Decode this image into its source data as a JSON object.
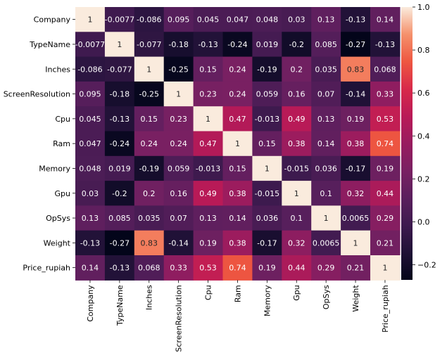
{
  "chart_data": {
    "type": "heatmap",
    "labels": [
      "Company",
      "TypeName",
      "Inches",
      "ScreenResolution",
      "Cpu",
      "Ram",
      "Memory",
      "Gpu",
      "OpSys",
      "Weight",
      "Price_rupiah"
    ],
    "values": [
      [
        1,
        -0.0077,
        -0.086,
        0.095,
        0.045,
        0.047,
        0.048,
        0.03,
        0.13,
        -0.13,
        0.14
      ],
      [
        -0.0077,
        1,
        -0.077,
        -0.18,
        -0.13,
        -0.24,
        0.019,
        -0.2,
        0.085,
        -0.27,
        -0.13
      ],
      [
        -0.086,
        -0.077,
        1,
        -0.25,
        0.15,
        0.24,
        -0.19,
        0.2,
        0.035,
        0.83,
        0.068
      ],
      [
        0.095,
        -0.18,
        -0.25,
        1,
        0.23,
        0.24,
        0.059,
        0.16,
        0.07,
        -0.14,
        0.33
      ],
      [
        0.045,
        -0.13,
        0.15,
        0.23,
        1,
        0.47,
        -0.013,
        0.49,
        0.13,
        0.19,
        0.53
      ],
      [
        0.047,
        -0.24,
        0.24,
        0.24,
        0.47,
        1,
        0.15,
        0.38,
        0.14,
        0.38,
        0.74
      ],
      [
        0.048,
        0.019,
        -0.19,
        0.059,
        -0.013,
        0.15,
        1,
        -0.015,
        0.036,
        -0.17,
        0.19
      ],
      [
        0.03,
        -0.2,
        0.2,
        0.16,
        0.49,
        0.38,
        -0.015,
        1,
        0.1,
        0.32,
        0.44
      ],
      [
        0.13,
        0.085,
        0.035,
        0.07,
        0.13,
        0.14,
        0.036,
        0.1,
        1,
        0.0065,
        0.29
      ],
      [
        -0.13,
        -0.27,
        0.83,
        -0.14,
        0.19,
        0.38,
        -0.17,
        0.32,
        0.0065,
        1,
        0.21
      ],
      [
        0.14,
        -0.13,
        0.068,
        0.33,
        0.53,
        0.74,
        0.19,
        0.44,
        0.29,
        0.21,
        1
      ]
    ],
    "annotations": [
      [
        "1",
        "-0.0077",
        "-0.086",
        "0.095",
        "0.045",
        "0.047",
        "0.048",
        "0.03",
        "0.13",
        "-0.13",
        "0.14"
      ],
      [
        "-0.0077",
        "1",
        "-0.077",
        "-0.18",
        "-0.13",
        "-0.24",
        "0.019",
        "-0.2",
        "0.085",
        "-0.27",
        "-0.13"
      ],
      [
        "-0.086",
        "-0.077",
        "1",
        "-0.25",
        "0.15",
        "0.24",
        "-0.19",
        "0.2",
        "0.035",
        "0.83",
        "0.068"
      ],
      [
        "0.095",
        "-0.18",
        "-0.25",
        "1",
        "0.23",
        "0.24",
        "0.059",
        "0.16",
        "0.07",
        "-0.14",
        "0.33"
      ],
      [
        "0.045",
        "-0.13",
        "0.15",
        "0.23",
        "1",
        "0.47",
        "-0.013",
        "0.49",
        "0.13",
        "0.19",
        "0.53"
      ],
      [
        "0.047",
        "-0.24",
        "0.24",
        "0.24",
        "0.47",
        "1",
        "0.15",
        "0.38",
        "0.14",
        "0.38",
        "0.74"
      ],
      [
        "0.048",
        "0.019",
        "-0.19",
        "0.059",
        "-0.013",
        "0.15",
        "1",
        "-0.015",
        "0.036",
        "-0.17",
        "0.19"
      ],
      [
        "0.03",
        "-0.2",
        "0.2",
        "0.16",
        "0.49",
        "0.38",
        "-0.015",
        "1",
        "0.1",
        "0.32",
        "0.44"
      ],
      [
        "0.13",
        "0.085",
        "0.035",
        "0.07",
        "0.13",
        "0.14",
        "0.036",
        "0.1",
        "1",
        "0.0065",
        "0.29"
      ],
      [
        "-0.13",
        "-0.27",
        "0.83",
        "-0.14",
        "0.19",
        "0.38",
        "-0.17",
        "0.32",
        "0.0065",
        "1",
        "0.21"
      ],
      [
        "0.14",
        "-0.13",
        "0.068",
        "0.33",
        "0.53",
        "0.74",
        "0.19",
        "0.44",
        "0.29",
        "0.21",
        "1"
      ]
    ],
    "colorbar": {
      "range": [
        -0.27,
        1
      ],
      "ticks": [
        -0.2,
        0.0,
        0.2,
        0.4,
        0.6,
        0.8,
        1.0
      ],
      "tick_labels": [
        "−0.2",
        "0.0",
        "0.2",
        "0.4",
        "0.6",
        "0.8",
        "1.0"
      ],
      "colormap": "rocket"
    },
    "title": "",
    "xlabel": "",
    "ylabel": "",
    "grid": false
  }
}
